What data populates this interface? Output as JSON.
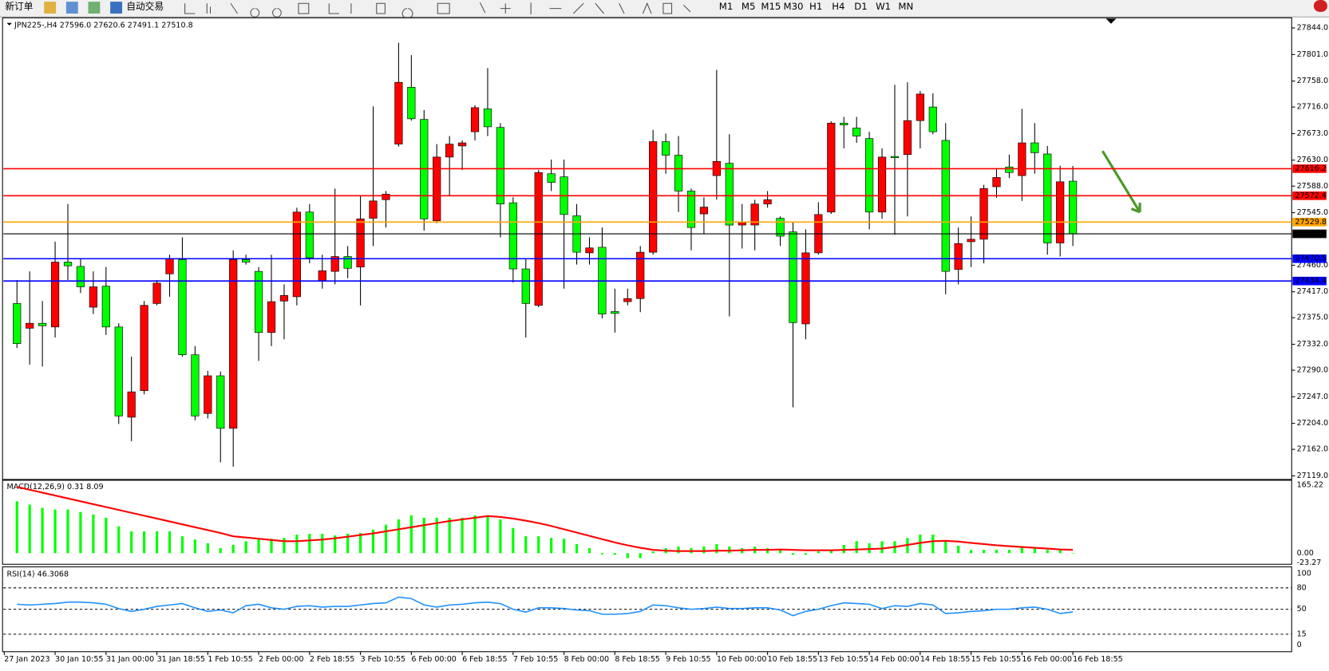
{
  "toolbar": {
    "new_order": "新订单",
    "auto_trading": "自动交易",
    "timeframes": [
      "M1",
      "M5",
      "M15",
      "M30",
      "H1",
      "H4",
      "D1",
      "W1",
      "MN"
    ]
  },
  "chart_data": [
    {
      "type": "candlestick",
      "title": "JPN225-,H4  27596.0 27620.6 27491.1 27510.8",
      "x_labels": [
        "27 Jan 2023",
        "30 Jan 10:55",
        "31 Jan 00:00",
        "31 Jan 18:55",
        "1 Feb 10:55",
        "2 Feb 00:00",
        "2 Feb 18:55",
        "3 Feb 10:55",
        "6 Feb 00:00",
        "6 Feb 18:55",
        "7 Feb 10:55",
        "8 Feb 00:00",
        "8 Feb 18:55",
        "9 Feb 10:55",
        "10 Feb 00:00",
        "10 Feb 18:55",
        "13 Feb 10:55",
        "14 Feb 00:00",
        "14 Feb 18:55",
        "15 Feb 10:55",
        "16 Feb 00:00",
        "16 Feb 18:55"
      ],
      "open": [
        27398,
        27358,
        27366,
        27360,
        27465,
        27458,
        27392,
        27426,
        27360,
        27214,
        27257,
        27398,
        27446,
        27469,
        27315,
        27220,
        27281,
        27196,
        27469,
        27450,
        27351,
        27402,
        27409,
        27546,
        27435,
        27450,
        27474,
        27457,
        27536,
        27566,
        27656,
        27748,
        27696,
        27532,
        27635,
        27653,
        27676,
        27713,
        27683,
        27561,
        27454,
        27395,
        27608,
        27603,
        27540,
        27480,
        27489,
        27385,
        27401,
        27406,
        27481,
        27660,
        27638,
        27580,
        27543,
        27605,
        27625,
        27525,
        27525,
        27559,
        27536,
        27514,
        27365,
        27480,
        27546,
        27690,
        27682,
        27665,
        27546,
        27636,
        27639,
        27694,
        27716,
        27662,
        27453,
        27498,
        27502,
        27587,
        27619,
        27605,
        27658,
        27640,
        27496,
        27596
      ],
      "high": [
        27436,
        27450,
        27402,
        27498,
        27559,
        27470,
        27450,
        27457,
        27366,
        27312,
        27402,
        27436,
        27477,
        27505,
        27329,
        27289,
        27288,
        27484,
        27477,
        27457,
        27477,
        27429,
        27553,
        27559,
        27477,
        27584,
        27491,
        27573,
        27717,
        27580,
        27820,
        27800,
        27711,
        27656,
        27669,
        27662,
        27719,
        27779,
        27690,
        27570,
        27470,
        27614,
        27631,
        27631,
        27559,
        27505,
        27521,
        27422,
        27422,
        27491,
        27679,
        27673,
        27669,
        27584,
        27570,
        27776,
        27672,
        27559,
        27566,
        27580,
        27539,
        27529,
        27518,
        27562,
        27693,
        27700,
        27700,
        27676,
        27649,
        27752,
        27756,
        27742,
        27738,
        27690,
        27521,
        27539,
        27590,
        27617,
        27639,
        27713,
        27690,
        27653,
        27621,
        27620.6
      ],
      "low": [
        27326,
        27299,
        27296,
        27343,
        27436,
        27415,
        27381,
        27347,
        27203,
        27175,
        27251,
        27395,
        27409,
        27312,
        27209,
        27212,
        27141,
        27134,
        27461,
        27305,
        27329,
        27340,
        27395,
        27463,
        27422,
        27429,
        27439,
        27395,
        27491,
        27521,
        27652,
        27694,
        27516,
        27528,
        27573,
        27614,
        27662,
        27669,
        27505,
        27432,
        27343,
        27392,
        27580,
        27422,
        27461,
        27461,
        27374,
        27351,
        27395,
        27384,
        27477,
        27608,
        27546,
        27484,
        27511,
        27566,
        27377,
        27487,
        27484,
        27553,
        27491,
        27230,
        27340,
        27477,
        27543,
        27649,
        27658,
        27518,
        27535,
        27509,
        27539,
        27649,
        27672,
        27413,
        27429,
        27457,
        27463,
        27569,
        27601,
        27564,
        27608,
        27477,
        27474,
        27491.1
      ],
      "close": [
        27333,
        27366,
        27362,
        27465,
        27459,
        27425,
        27425,
        27360,
        27216,
        27255,
        27395,
        27431,
        27470,
        27315,
        27216,
        27281,
        27196,
        27469,
        27465,
        27351,
        27401,
        27411,
        27546,
        27472,
        27451,
        27474,
        27455,
        27535,
        27564,
        27575,
        27756,
        27697,
        27535,
        27635,
        27656,
        27658,
        27715,
        27684,
        27559,
        27454,
        27398,
        27610,
        27594,
        27542,
        27481,
        27488,
        27381,
        27382,
        27406,
        27481,
        27660,
        27638,
        27580,
        27521,
        27554,
        27628,
        27525,
        27529,
        27559,
        27566,
        27507,
        27367,
        27480,
        27542,
        27690,
        27687,
        27669,
        27546,
        27635,
        27634,
        27694,
        27737,
        27676,
        27450,
        27495,
        27502,
        27584,
        27602,
        27610,
        27658,
        27642,
        27496,
        27595,
        27510.8
      ],
      "up_color": "#ff0000",
      "down_color": "#00ff00",
      "ylim": [
        27116,
        27859
      ],
      "yticks": [
        {
          "value": 27844,
          "label": "27844.0"
        },
        {
          "value": 27801,
          "label": "27801.0"
        },
        {
          "value": 27758,
          "label": "27758.0"
        },
        {
          "value": 27716,
          "label": "27716.0"
        },
        {
          "value": 27673,
          "label": "27673.0"
        },
        {
          "value": 27630,
          "label": "27630.0"
        },
        {
          "value": 27588,
          "label": "27588.0"
        },
        {
          "value": 27545,
          "label": "27545.0"
        },
        {
          "value": 27460,
          "label": "27460.0"
        },
        {
          "value": 27417,
          "label": "27417.0"
        },
        {
          "value": 27375,
          "label": "27375.0"
        },
        {
          "value": 27332,
          "label": "27332.0"
        },
        {
          "value": 27290,
          "label": "27290.0"
        },
        {
          "value": 27247,
          "label": "27247.0"
        },
        {
          "value": 27204,
          "label": "27204.0"
        },
        {
          "value": 27162,
          "label": "27162.0"
        },
        {
          "value": 27119,
          "label": "27119.0"
        }
      ],
      "levels": [
        {
          "value": 27616.2,
          "color": "#ff0000"
        },
        {
          "value": 27572.4,
          "color": "#ff0000"
        },
        {
          "value": 27529.8,
          "color": "#ffa500"
        },
        {
          "value": 27510.8,
          "color": "#000000"
        },
        {
          "value": 27470.5,
          "color": "#0000ff"
        },
        {
          "value": 27434.4,
          "color": "#0000ff"
        }
      ]
    },
    {
      "type": "macd",
      "title": "MACD(12,26,9) 0.31 8.09",
      "histogram": [
        126,
        118,
        110,
        106,
        106,
        100,
        94,
        86,
        65,
        53,
        53,
        53,
        53,
        41,
        33,
        24,
        12,
        20,
        29,
        33,
        35,
        37,
        45,
        47,
        47,
        43,
        47,
        49,
        57,
        69,
        82,
        92,
        86,
        86,
        86,
        86,
        92,
        92,
        82,
        61,
        41,
        41,
        37,
        35,
        22,
        12,
        -3,
        -4,
        -12,
        -12,
        4,
        12,
        16,
        12,
        16,
        22,
        16,
        12,
        16,
        12,
        8,
        -4,
        -4,
        4,
        8,
        20,
        29,
        24,
        29,
        29,
        37,
        45,
        45,
        29,
        18,
        8,
        8,
        8,
        8,
        16,
        12,
        8,
        8,
        0.31
      ],
      "signal": [
        161,
        154,
        147,
        140,
        133,
        126,
        119,
        112,
        105,
        98,
        91,
        84,
        77,
        70,
        63,
        56,
        49,
        41,
        38,
        35,
        32,
        29,
        29,
        31,
        33,
        36,
        40,
        44,
        48,
        53,
        58,
        63,
        68,
        73,
        78,
        82,
        86,
        90,
        88,
        84,
        79,
        73,
        66,
        58,
        50,
        42,
        34,
        26,
        19,
        13,
        8,
        6,
        5,
        5,
        5,
        6,
        6,
        7,
        8,
        8,
        9,
        8,
        7,
        7,
        7,
        8,
        9,
        10,
        11,
        15,
        20,
        25,
        29,
        30,
        28,
        25,
        22,
        19,
        17,
        15,
        13,
        11,
        9,
        8.09
      ],
      "hist_color": "#00ff00",
      "signal_color": "#ff0000",
      "ylim": [
        -25,
        175
      ],
      "yticks": [
        165.22,
        {
          "value": 0,
          "label": "0.00"
        },
        -23.27
      ]
    },
    {
      "type": "rsi",
      "title": "RSI(14) 46.3068",
      "values": [
        57,
        56,
        57,
        58,
        60,
        60,
        59,
        57,
        51,
        47,
        50,
        54,
        56,
        58,
        52,
        47,
        49,
        45,
        55,
        57,
        52,
        50,
        54,
        55,
        53,
        54,
        54,
        56,
        58,
        59,
        67,
        65,
        56,
        53,
        56,
        57,
        59,
        60,
        58,
        50,
        46,
        52,
        52,
        51,
        49,
        48,
        43,
        43,
        44,
        47,
        56,
        55,
        52,
        50,
        51,
        53,
        51,
        51,
        52,
        52,
        49,
        41,
        47,
        50,
        55,
        59,
        58,
        57,
        51,
        55,
        54,
        58,
        56,
        44,
        45,
        47,
        48,
        50,
        50,
        52,
        53,
        50,
        44,
        46.3068
      ],
      "color": "#1e90ff",
      "ylim": [
        0,
        100
      ],
      "yticks": [
        100,
        80,
        50,
        15,
        0
      ]
    }
  ]
}
